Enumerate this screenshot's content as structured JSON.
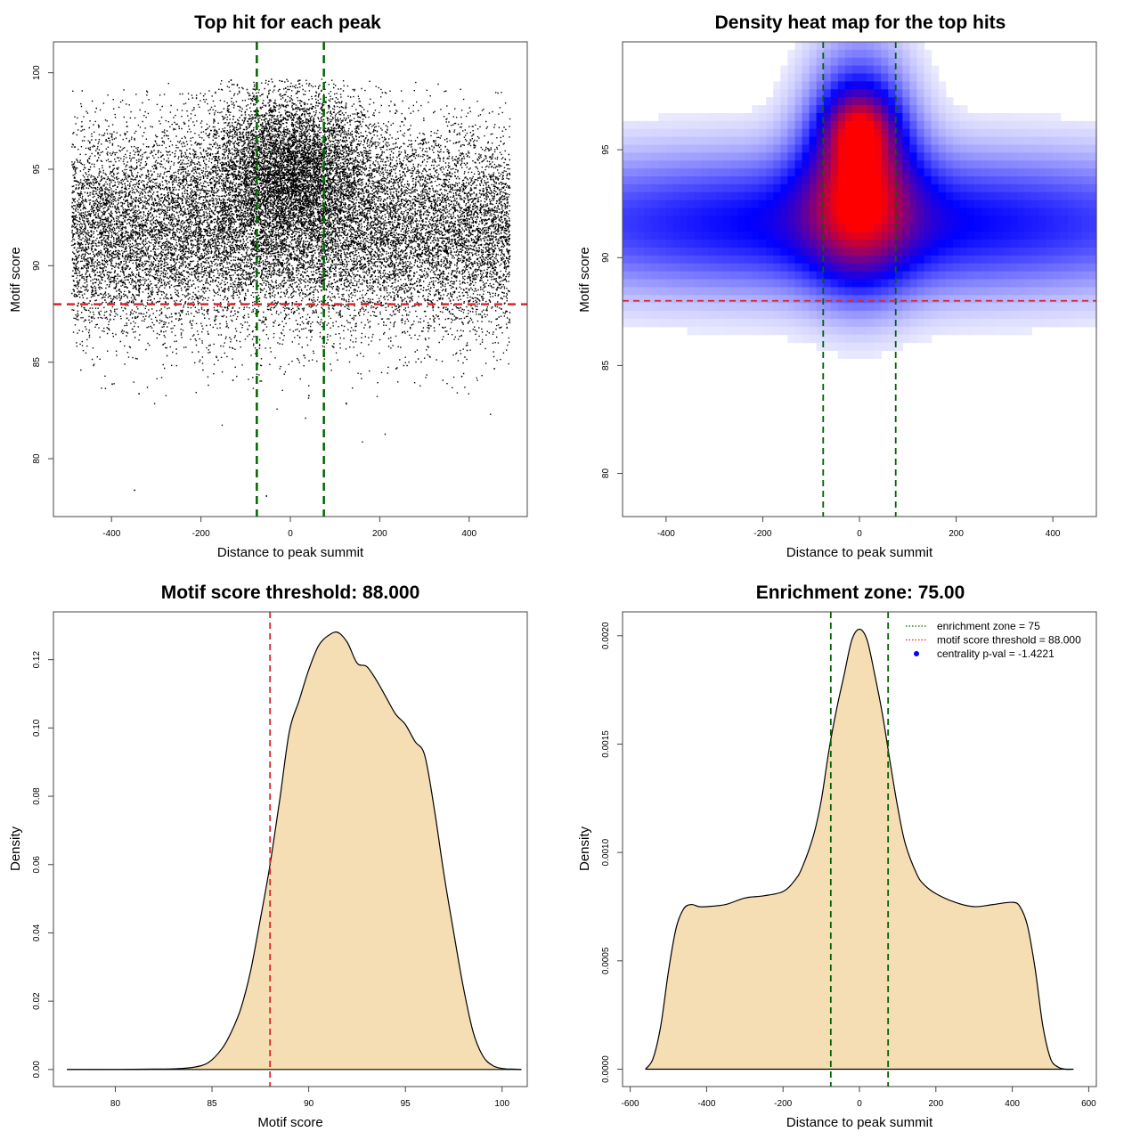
{
  "chart_data": [
    {
      "type": "scatter",
      "title": "Top hit for each peak",
      "xlabel": "Distance to peak summit",
      "ylabel": "Motif score",
      "xlim": [
        -530,
        530
      ],
      "ylim": [
        77,
        101.6
      ],
      "xticks": [
        -400,
        -200,
        0,
        200,
        400
      ],
      "yticks": [
        80,
        85,
        90,
        95,
        100
      ],
      "x_range_of_points": [
        -490,
        490
      ],
      "clusters": [
        {
          "x_center": 0,
          "x_sd": 260,
          "y_center": 91.8,
          "y_sd": 2.6,
          "uniform_x": true,
          "count": 17000
        },
        {
          "x_center": 0,
          "x_sd": 95,
          "y_center": 95.2,
          "y_sd": 2.0,
          "uniform_x": false,
          "count": 6000
        }
      ],
      "outliers": [
        {
          "x": -350,
          "y": 78.4
        },
        {
          "x": -55,
          "y": 78.1
        },
        {
          "x": -340,
          "y": 83.4
        },
        {
          "x": -400,
          "y": 83.9
        },
        {
          "x": 40,
          "y": 83.3
        },
        {
          "x": 382,
          "y": 84.3
        },
        {
          "x": -130,
          "y": 84.1
        },
        {
          "x": 235,
          "y": 84.7
        },
        {
          "x": 455,
          "y": 84.7
        }
      ],
      "hlines": [
        {
          "y": 88.0,
          "color": "#d62828"
        }
      ],
      "vlines": [
        {
          "x": -75,
          "color": "#006400"
        },
        {
          "x": 75,
          "color": "#006400"
        }
      ]
    },
    {
      "type": "heatmap",
      "title": "Density heat map for the top hits",
      "xlabel": "Distance to peak summit",
      "ylabel": "Motif score",
      "xlim": [
        -490,
        490
      ],
      "ylim": [
        78,
        100
      ],
      "xticks": [
        -400,
        -200,
        0,
        200,
        400
      ],
      "yticks": [
        80,
        85,
        90,
        95
      ],
      "colors": [
        "#ffffff",
        "#0000ff",
        "#ff0000"
      ],
      "density_components": [
        {
          "x": 0,
          "y": 91.6,
          "sx": 600,
          "sy": 2.3,
          "w": 0.75
        },
        {
          "x": 0,
          "y": 94.2,
          "sx": 75,
          "sy": 3.4,
          "w": 1.15
        },
        {
          "x": 0,
          "y": 96.0,
          "sx": 45,
          "sy": 1.1,
          "w": 0.6
        }
      ],
      "hlines": [
        {
          "y": 88.0,
          "color": "#d62828"
        }
      ],
      "vlines": [
        {
          "x": -75,
          "color": "#006400"
        },
        {
          "x": 75,
          "color": "#006400"
        }
      ]
    },
    {
      "type": "area",
      "title": "Motif score threshold: 88.000",
      "xlabel": "Motif score",
      "ylabel": "Density",
      "xlim": [
        76.8,
        101.3
      ],
      "ylim": [
        -0.005,
        0.134
      ],
      "xticks": [
        80,
        85,
        90,
        95,
        100
      ],
      "yticks": [
        0.0,
        0.02,
        0.04,
        0.06,
        0.08,
        0.1,
        0.12
      ],
      "ytick_labels": [
        "0.00",
        "0.02",
        "0.04",
        "0.06",
        "0.08",
        "0.10",
        "0.12"
      ],
      "fill": "#f5deb3",
      "x": [
        77.5,
        80,
        82,
        83,
        84,
        84.8,
        85.5,
        86,
        86.5,
        87,
        87.5,
        88,
        88.5,
        89,
        89.5,
        90,
        90.5,
        91,
        91.5,
        92,
        92.5,
        93,
        93.5,
        94,
        94.5,
        95,
        95.5,
        96,
        96.5,
        97,
        97.5,
        98,
        98.5,
        99,
        99.5,
        100,
        100.5,
        101
      ],
      "y": [
        0.0,
        0.0,
        0.0001,
        0.0002,
        0.0006,
        0.002,
        0.006,
        0.011,
        0.018,
        0.029,
        0.044,
        0.06,
        0.079,
        0.099,
        0.108,
        0.117,
        0.124,
        0.127,
        0.128,
        0.125,
        0.119,
        0.118,
        0.114,
        0.109,
        0.104,
        0.101,
        0.096,
        0.092,
        0.076,
        0.057,
        0.04,
        0.024,
        0.011,
        0.004,
        0.0012,
        0.0003,
        0.0001,
        0.0
      ],
      "vlines": [
        {
          "x": 88.0,
          "color": "#d62828"
        }
      ]
    },
    {
      "type": "area",
      "title": "Enrichment zone: 75.00",
      "xlabel": "Distance to peak summit",
      "ylabel": "Density",
      "xlim": [
        -620,
        620
      ],
      "ylim": [
        -8e-05,
        0.00211
      ],
      "xticks": [
        -600,
        -400,
        -200,
        0,
        200,
        400,
        600
      ],
      "yticks": [
        0.0,
        0.0005,
        0.001,
        0.0015,
        0.002
      ],
      "ytick_labels": [
        "0.0000",
        "0.0005",
        "0.0010",
        "0.0015",
        "0.0020"
      ],
      "fill": "#f5deb3",
      "x": [
        -560,
        -540,
        -520,
        -500,
        -480,
        -460,
        -440,
        -420,
        -400,
        -350,
        -300,
        -250,
        -200,
        -170,
        -150,
        -120,
        -100,
        -80,
        -60,
        -40,
        -20,
        0,
        20,
        40,
        60,
        80,
        100,
        120,
        150,
        170,
        200,
        250,
        300,
        350,
        400,
        420,
        440,
        460,
        480,
        500,
        520,
        540,
        560
      ],
      "y": [
        0.0,
        5e-05,
        0.0002,
        0.00045,
        0.00065,
        0.00074,
        0.00076,
        0.00075,
        0.00075,
        0.00076,
        0.00079,
        0.0008,
        0.00082,
        0.00087,
        0.00093,
        0.00108,
        0.00124,
        0.00147,
        0.00166,
        0.00182,
        0.00198,
        0.00203,
        0.00198,
        0.00182,
        0.00164,
        0.00142,
        0.00121,
        0.00104,
        0.0009,
        0.00085,
        0.00081,
        0.00077,
        0.00075,
        0.00076,
        0.00077,
        0.00075,
        0.00066,
        0.00046,
        0.0002,
        5e-05,
        1e-05,
        0.0,
        0.0
      ],
      "vlines": [
        {
          "x": -75,
          "color": "#006400"
        },
        {
          "x": 75,
          "color": "#006400"
        }
      ],
      "legend": {
        "placement": "top-right",
        "entries": [
          {
            "label": "enrichment zone = 75",
            "color": "#006400",
            "style": "dotted-line"
          },
          {
            "label": "motif score threshold = 88.000",
            "color": "#d62828",
            "style": "dotted-line"
          },
          {
            "label": "centrality p-val = -1.4221",
            "color": "#0000ff",
            "style": "point"
          }
        ]
      }
    }
  ]
}
